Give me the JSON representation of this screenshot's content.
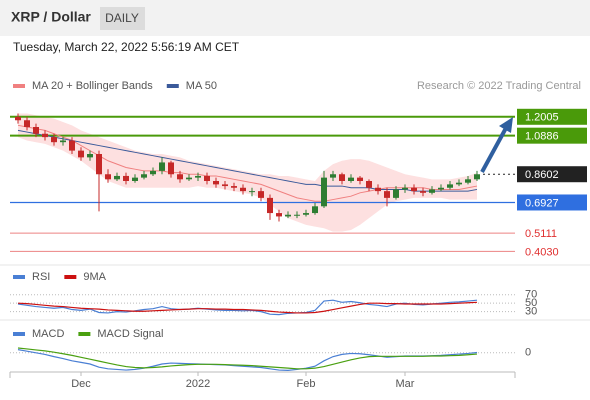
{
  "header": {
    "title": "XRP / Dollar",
    "timeframe": "DAILY",
    "timestamp": "Tuesday, March 22, 2022 5:56:19 AM CET"
  },
  "chart_data": [
    {
      "type": "candlestick",
      "source": "Research © 2022 Trading Central",
      "up_color": "#2e7d32",
      "down_color": "#c62828",
      "categories": [
        null,
        null,
        null,
        null,
        null,
        null,
        null,
        "Dec",
        null,
        null,
        null,
        null,
        null,
        null,
        null,
        null,
        null,
        null,
        null,
        null,
        "2022",
        null,
        null,
        null,
        null,
        null,
        null,
        null,
        null,
        null,
        null,
        null,
        "Feb",
        null,
        null,
        null,
        null,
        null,
        null,
        null,
        null,
        null,
        null,
        "Mar",
        null,
        null,
        null,
        null,
        null,
        null,
        null,
        null
      ],
      "open": [
        1.2,
        1.18,
        1.14,
        1.1,
        1.08,
        1.05,
        1.06,
        1.0,
        0.96,
        0.98,
        0.86,
        0.83,
        0.85,
        0.82,
        0.84,
        0.86,
        0.88,
        0.93,
        0.86,
        0.83,
        0.84,
        0.85,
        0.82,
        0.8,
        0.79,
        0.78,
        0.76,
        0.76,
        0.72,
        0.63,
        0.61,
        0.62,
        0.62,
        0.63,
        0.67,
        0.84,
        0.86,
        0.82,
        0.84,
        0.82,
        0.78,
        0.76,
        0.72,
        0.77,
        0.78,
        0.76,
        0.75,
        0.77,
        0.78,
        0.8,
        0.81,
        0.83
      ],
      "high": [
        1.22,
        1.2,
        1.16,
        1.12,
        1.1,
        1.08,
        1.08,
        1.02,
        1.0,
        1.0,
        0.89,
        0.87,
        0.87,
        0.86,
        0.88,
        0.9,
        0.96,
        0.94,
        0.88,
        0.86,
        0.87,
        0.87,
        0.84,
        0.82,
        0.81,
        0.8,
        0.78,
        0.78,
        0.74,
        0.65,
        0.64,
        0.64,
        0.65,
        0.69,
        0.88,
        0.88,
        0.87,
        0.86,
        0.85,
        0.83,
        0.8,
        0.78,
        0.79,
        0.8,
        0.8,
        0.78,
        0.79,
        0.8,
        0.82,
        0.83,
        0.85,
        0.88
      ],
      "low": [
        1.16,
        1.12,
        1.08,
        1.06,
        1.03,
        1.03,
        0.98,
        0.94,
        0.94,
        0.64,
        0.81,
        0.82,
        0.8,
        0.81,
        0.83,
        0.85,
        0.86,
        0.84,
        0.81,
        0.82,
        0.82,
        0.8,
        0.78,
        0.77,
        0.76,
        0.74,
        0.73,
        0.7,
        0.59,
        0.58,
        0.6,
        0.6,
        0.61,
        0.62,
        0.66,
        0.82,
        0.8,
        0.81,
        0.8,
        0.76,
        0.74,
        0.67,
        0.71,
        0.75,
        0.74,
        0.73,
        0.74,
        0.76,
        0.77,
        0.79,
        0.8,
        0.82
      ],
      "close": [
        1.18,
        1.14,
        1.1,
        1.08,
        1.05,
        1.06,
        1.0,
        0.96,
        0.98,
        0.86,
        0.83,
        0.85,
        0.82,
        0.84,
        0.86,
        0.88,
        0.93,
        0.86,
        0.83,
        0.84,
        0.85,
        0.82,
        0.8,
        0.79,
        0.78,
        0.76,
        0.76,
        0.72,
        0.63,
        0.61,
        0.62,
        0.62,
        0.63,
        0.67,
        0.84,
        0.86,
        0.82,
        0.84,
        0.82,
        0.78,
        0.76,
        0.72,
        0.77,
        0.78,
        0.76,
        0.75,
        0.77,
        0.78,
        0.8,
        0.81,
        0.83,
        0.86
      ],
      "series": [
        {
          "name": "MA 20 + Bollinger Bands",
          "color": "#f08080",
          "band_color": "#fde0e0",
          "values": [
            1.15,
            1.14,
            1.13,
            1.12,
            1.1,
            1.08,
            1.06,
            1.03,
            1.0,
            0.97,
            0.94,
            0.92,
            0.9,
            0.89,
            0.88,
            0.88,
            0.88,
            0.87,
            0.87,
            0.86,
            0.86,
            0.85,
            0.85,
            0.84,
            0.83,
            0.82,
            0.81,
            0.8,
            0.78,
            0.76,
            0.74,
            0.72,
            0.71,
            0.7,
            0.7,
            0.71,
            0.72,
            0.73,
            0.75,
            0.76,
            0.77,
            0.78,
            0.78,
            0.78,
            0.78,
            0.78,
            0.77,
            0.77,
            0.77,
            0.77,
            0.78,
            0.79
          ],
          "upper": [
            1.22,
            1.22,
            1.21,
            1.2,
            1.19,
            1.17,
            1.15,
            1.12,
            1.1,
            1.08,
            1.06,
            1.04,
            1.02,
            1.0,
            0.99,
            0.98,
            0.98,
            0.97,
            0.96,
            0.94,
            0.93,
            0.92,
            0.91,
            0.9,
            0.89,
            0.88,
            0.87,
            0.86,
            0.86,
            0.85,
            0.85,
            0.84,
            0.83,
            0.82,
            0.88,
            0.92,
            0.94,
            0.95,
            0.95,
            0.94,
            0.92,
            0.9,
            0.88,
            0.86,
            0.85,
            0.84,
            0.83,
            0.83,
            0.83,
            0.84,
            0.85,
            0.87
          ],
          "lower": [
            1.08,
            1.06,
            1.05,
            1.04,
            1.02,
            1.0,
            0.97,
            0.94,
            0.9,
            0.86,
            0.82,
            0.8,
            0.78,
            0.78,
            0.78,
            0.78,
            0.78,
            0.78,
            0.78,
            0.78,
            0.79,
            0.78,
            0.78,
            0.77,
            0.76,
            0.75,
            0.74,
            0.72,
            0.68,
            0.64,
            0.6,
            0.58,
            0.56,
            0.55,
            0.54,
            0.52,
            0.52,
            0.53,
            0.56,
            0.6,
            0.64,
            0.68,
            0.7,
            0.71,
            0.72,
            0.72,
            0.72,
            0.72,
            0.71,
            0.71,
            0.71,
            0.71
          ]
        },
        {
          "name": "MA 50",
          "color": "#3b5a9a",
          "values": [
            1.12,
            1.11,
            1.1,
            1.09,
            1.08,
            1.07,
            1.06,
            1.05,
            1.04,
            1.03,
            1.02,
            1.01,
            1.0,
            0.99,
            0.98,
            0.97,
            0.96,
            0.95,
            0.94,
            0.93,
            0.92,
            0.91,
            0.9,
            0.89,
            0.88,
            0.87,
            0.86,
            0.85,
            0.84,
            0.83,
            0.82,
            0.81,
            0.8,
            0.8,
            0.79,
            0.79,
            0.79,
            0.78,
            0.78,
            0.78,
            0.77,
            0.77,
            0.77,
            0.77,
            0.76,
            0.76,
            0.76,
            0.76,
            0.76,
            0.76,
            0.76,
            0.77
          ]
        }
      ],
      "ylim": [
        0.34,
        1.3
      ],
      "levels": [
        {
          "value": 1.2005,
          "label": "1.2005",
          "color": "#4a9a0a",
          "style": "box",
          "line": "solid"
        },
        {
          "value": 1.0886,
          "label": "1.0886",
          "color": "#4a9a0a",
          "style": "box",
          "line": "solid"
        },
        {
          "value": 0.8602,
          "label": "0.8602",
          "color": "#222222",
          "style": "box",
          "line": "dotted"
        },
        {
          "value": 0.6927,
          "label": "0.6927",
          "color": "#2f6fe0",
          "style": "box",
          "line": "solid"
        },
        {
          "value": 0.5111,
          "label": "0.5111",
          "color": "#e03030",
          "style": "text",
          "line": "solid"
        },
        {
          "value": 0.403,
          "label": "0.4030",
          "color": "#e03030",
          "style": "text",
          "line": "solid"
        }
      ]
    },
    {
      "type": "line",
      "series": [
        {
          "name": "RSI",
          "color": "#4a7fd4",
          "values": [
            48,
            45,
            42,
            40,
            38,
            40,
            35,
            33,
            36,
            28,
            27,
            30,
            29,
            32,
            35,
            37,
            42,
            37,
            35,
            36,
            38,
            36,
            34,
            33,
            33,
            32,
            33,
            30,
            24,
            23,
            26,
            27,
            28,
            33,
            55,
            57,
            52,
            54,
            51,
            47,
            45,
            42,
            48,
            50,
            47,
            46,
            48,
            50,
            52,
            53,
            55,
            57
          ]
        },
        {
          "name": "9MA",
          "color": "#cc1010",
          "values": [
            50,
            49,
            47,
            45,
            43,
            42,
            40,
            38,
            37,
            36,
            34,
            33,
            32,
            31,
            31,
            32,
            33,
            34,
            35,
            36,
            37,
            37,
            36,
            36,
            35,
            35,
            34,
            33,
            31,
            29,
            28,
            27,
            27,
            28,
            31,
            35,
            39,
            43,
            47,
            50,
            50,
            49,
            49,
            48,
            48,
            48,
            48,
            48,
            49,
            50,
            51,
            52
          ]
        }
      ],
      "ylim": [
        15,
        100
      ],
      "yticks": [
        30,
        50,
        70
      ]
    },
    {
      "type": "line",
      "series": [
        {
          "name": "MACD",
          "color": "#4a7fd4",
          "values": [
            0.01,
            0.005,
            0,
            -0.005,
            -0.012,
            -0.018,
            -0.025,
            -0.03,
            -0.035,
            -0.045,
            -0.05,
            -0.052,
            -0.054,
            -0.052,
            -0.048,
            -0.042,
            -0.035,
            -0.032,
            -0.033,
            -0.034,
            -0.035,
            -0.036,
            -0.037,
            -0.038,
            -0.04,
            -0.042,
            -0.044,
            -0.046,
            -0.05,
            -0.054,
            -0.055,
            -0.052,
            -0.048,
            -0.042,
            -0.025,
            -0.012,
            -0.005,
            -0.002,
            -0.003,
            -0.006,
            -0.01,
            -0.014,
            -0.012,
            -0.01,
            -0.01,
            -0.01,
            -0.009,
            -0.008,
            -0.006,
            -0.004,
            -0.002,
            0.001
          ]
        },
        {
          "name": "MACD Signal",
          "color": "#4aa010",
          "values": [
            0.015,
            0.012,
            0.009,
            0.006,
            0.002,
            -0.003,
            -0.008,
            -0.014,
            -0.02,
            -0.026,
            -0.032,
            -0.038,
            -0.043,
            -0.046,
            -0.047,
            -0.046,
            -0.044,
            -0.041,
            -0.039,
            -0.037,
            -0.036,
            -0.036,
            -0.036,
            -0.037,
            -0.038,
            -0.039,
            -0.04,
            -0.042,
            -0.044,
            -0.046,
            -0.048,
            -0.05,
            -0.05,
            -0.048,
            -0.043,
            -0.036,
            -0.029,
            -0.022,
            -0.016,
            -0.012,
            -0.011,
            -0.011,
            -0.011,
            -0.011,
            -0.011,
            -0.011,
            -0.01,
            -0.01,
            -0.009,
            -0.008,
            -0.006,
            -0.004
          ]
        }
      ],
      "ylim": [
        -0.06,
        0.04
      ],
      "yticks": [
        0
      ]
    }
  ]
}
